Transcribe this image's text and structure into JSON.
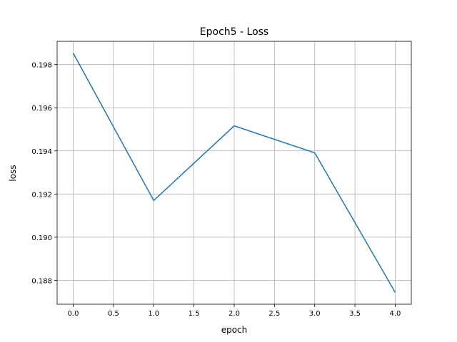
{
  "chart_data": {
    "type": "line",
    "title": "Epoch5 - Loss",
    "x_label": "epoch",
    "y_label": "loss",
    "x": [
      0,
      1,
      2,
      3,
      4
    ],
    "series": [
      {
        "name": "loss",
        "color": "#1f77b4",
        "values": [
          0.19853,
          0.1917,
          0.19516,
          0.19391,
          0.18744
        ]
      }
    ],
    "xlim": [
      -0.2,
      4.2
    ],
    "xticks": [
      {
        "value": 0,
        "label": "0.0"
      },
      0.5,
      {
        "value": 1,
        "label": "1.0"
      },
      1.5,
      {
        "value": 2,
        "label": "2.0"
      },
      2.5,
      {
        "value": 3,
        "label": "3.0"
      },
      3.5,
      {
        "value": 4,
        "label": "4.0"
      }
    ],
    "ylim": [
      0.18689,
      0.19908
    ],
    "yticks": [
      0.188,
      {
        "value": 0.19,
        "label": "0.190"
      },
      0.192,
      0.194,
      0.196,
      0.198
    ],
    "grid": true
  }
}
